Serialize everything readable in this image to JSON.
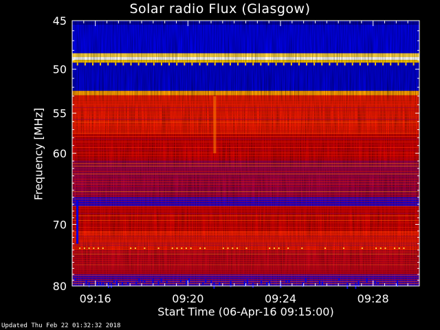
{
  "chart_data": {
    "type": "heatmap",
    "title": "Solar radio Flux (Glasgow)",
    "xlabel": "Start Time (06-Apr-16 09:15:00)",
    "ylabel": "Frequency [MHz]",
    "x_ticks": [
      "09:16",
      "09:20",
      "09:24",
      "09:28"
    ],
    "x_tick_minutes": [
      16,
      20,
      24,
      28
    ],
    "x_range_minutes": [
      15.0,
      30.0
    ],
    "y_ticks": [
      45,
      50,
      55,
      60,
      70,
      80
    ],
    "y_range_mhz": [
      45,
      80
    ],
    "y_scale": "log",
    "colormap": "blue-red-yellow-white",
    "background_level": "red",
    "bands": [
      {
        "from_mhz": 45.0,
        "to_mhz": 45.4,
        "level": 0.05
      },
      {
        "from_mhz": 45.4,
        "to_mhz": 48.3,
        "level": 0.12
      },
      {
        "from_mhz": 48.3,
        "to_mhz": 48.7,
        "level": 0.85
      },
      {
        "from_mhz": 48.7,
        "to_mhz": 49.0,
        "level": 1.0
      },
      {
        "from_mhz": 49.0,
        "to_mhz": 49.3,
        "level": 0.8
      },
      {
        "from_mhz": 49.3,
        "to_mhz": 52.4,
        "level": 0.1
      },
      {
        "from_mhz": 52.4,
        "to_mhz": 52.9,
        "level": 0.75
      },
      {
        "from_mhz": 52.9,
        "to_mhz": 53.5,
        "level": 0.55
      },
      {
        "from_mhz": 53.5,
        "to_mhz": 57.5,
        "level": 0.55
      },
      {
        "from_mhz": 57.5,
        "to_mhz": 61.0,
        "level": 0.45
      },
      {
        "from_mhz": 61.0,
        "to_mhz": 66.0,
        "level": 0.38
      },
      {
        "from_mhz": 66.0,
        "to_mhz": 67.3,
        "level": 0.2
      },
      {
        "from_mhz": 67.3,
        "to_mhz": 71.0,
        "level": 0.45
      },
      {
        "from_mhz": 71.0,
        "to_mhz": 74.0,
        "level": 0.55
      },
      {
        "from_mhz": 74.0,
        "to_mhz": 78.0,
        "level": 0.42
      },
      {
        "from_mhz": 78.0,
        "to_mhz": 80.0,
        "level": 0.25
      }
    ],
    "grid": false,
    "legend": "none"
  },
  "footer": "Updated Thu Feb 22 01:32:32 2018"
}
